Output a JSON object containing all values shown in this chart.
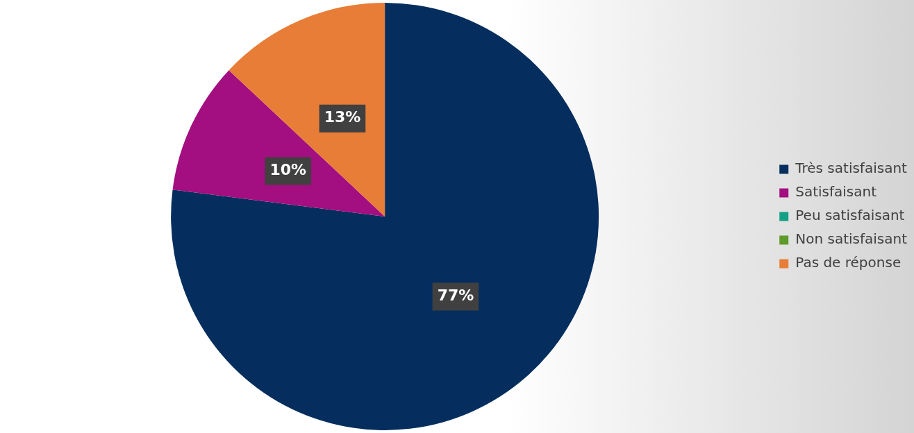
{
  "chart_data": {
    "type": "pie",
    "categories": [
      "Très satisfaisant",
      "Satisfaisant",
      "Peu satisfaisant",
      "Non satisfaisant",
      "Pas de réponse"
    ],
    "values": [
      77,
      10,
      0,
      0,
      13
    ],
    "colors": [
      "#052e5e",
      "#a30e80",
      "#13a085",
      "#5d9c2a",
      "#e87d37"
    ],
    "value_labels": [
      "77%",
      "10%",
      null,
      null,
      "13%"
    ],
    "legend": "right"
  }
}
